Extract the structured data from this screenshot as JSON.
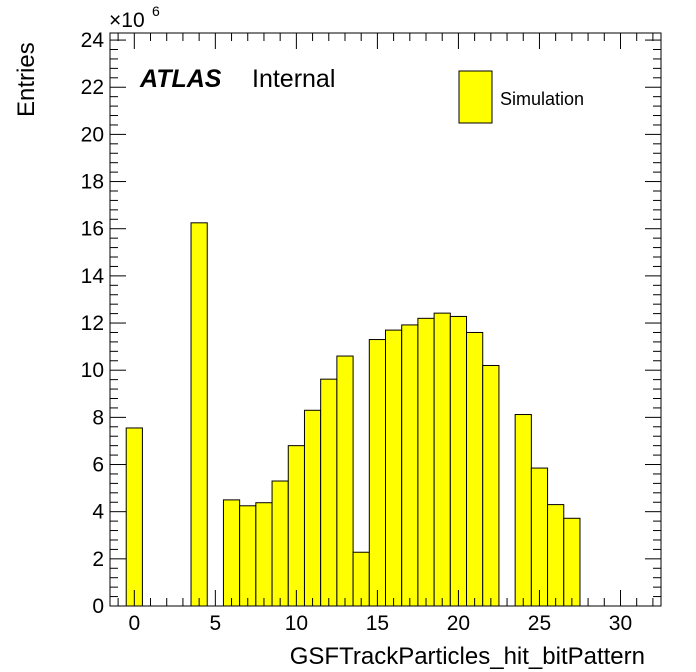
{
  "chart_data": {
    "type": "bar",
    "histogram": true,
    "xlabel": "GSFTrackParticles_hit_bitPattern",
    "ylabel": "Entries",
    "y_multiplier": "×10",
    "y_multiplier_exponent": "6",
    "xlim": [
      -1.5,
      32.5
    ],
    "ylim": [
      0,
      24.3
    ],
    "x_ticks": [
      0,
      5,
      10,
      15,
      20,
      25,
      30
    ],
    "y_ticks": [
      0,
      2,
      4,
      6,
      8,
      10,
      12,
      14,
      16,
      18,
      20,
      22,
      24
    ],
    "bin_width": 1,
    "bin_centers": [
      0,
      1,
      2,
      3,
      4,
      5,
      6,
      7,
      8,
      9,
      10,
      11,
      12,
      13,
      14,
      15,
      16,
      17,
      18,
      19,
      20,
      21,
      22,
      23,
      24,
      25,
      26,
      27,
      28,
      29,
      30,
      31
    ],
    "series": [
      {
        "name": "Simulation",
        "color": "#ffff00",
        "values": [
          7.55,
          0,
          0,
          0,
          16.25,
          0,
          4.5,
          4.25,
          4.38,
          5.3,
          6.8,
          8.3,
          9.62,
          10.6,
          2.28,
          11.3,
          11.7,
          11.92,
          12.2,
          12.42,
          12.28,
          11.6,
          10.2,
          0,
          8.12,
          5.85,
          4.3,
          3.72,
          0,
          0,
          0,
          0
        ]
      }
    ],
    "legend": {
      "position": "top-right",
      "entries": [
        "Simulation"
      ]
    },
    "labels": {
      "atlas": "ATLAS",
      "status": "Internal"
    },
    "grid": false
  }
}
